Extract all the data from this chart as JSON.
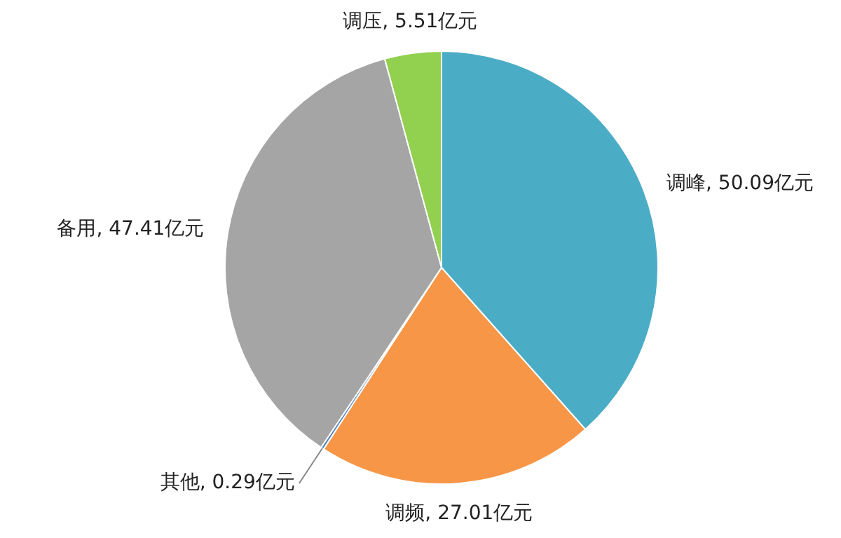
{
  "chart_data": {
    "type": "pie",
    "categories": [
      "调峰",
      "调频",
      "其他",
      "备用",
      "调压"
    ],
    "values": [
      50.09,
      27.01,
      0.29,
      47.41,
      5.51
    ],
    "colors": [
      "#4bacc6",
      "#f79646",
      "#4f81bd",
      "#a5a5a5",
      "#92d050"
    ],
    "value_labels": [
      ", 50.09亿元",
      ", 27.01亿元",
      ", 0.29亿元",
      ", 47.41亿元",
      ", 5.51亿元"
    ],
    "legend": false
  }
}
